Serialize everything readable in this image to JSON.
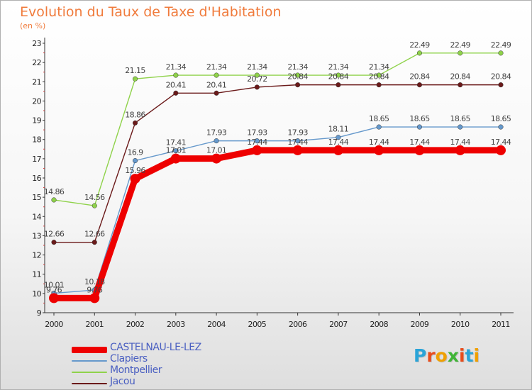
{
  "title": "Evolution du Taux de Taxe d'Habitation",
  "units": "(en %)",
  "logo": {
    "text": "Proxiti",
    "letter_colors": [
      "#2aa4d8",
      "#e84c1c",
      "#f0a000",
      "#3fb436",
      "#e84c1c",
      "#2aa4d8",
      "#f0a000"
    ]
  },
  "chart_data": {
    "type": "line",
    "title": "Evolution du Taux de Taxe d'Habitation",
    "ylabel": "(en %)",
    "xlabel": "",
    "x": [
      "2000",
      "2001",
      "2002",
      "2003",
      "2004",
      "2005",
      "2006",
      "2007",
      "2008",
      "2009",
      "2010",
      "2011"
    ],
    "ylim": [
      9,
      23
    ],
    "yticks": [
      9,
      10,
      11,
      12,
      13,
      14,
      15,
      16,
      17,
      18,
      19,
      20,
      21,
      22,
      23
    ],
    "series": [
      {
        "name": "Montpellier",
        "color": "#8fd24a",
        "values": [
          14.86,
          14.56,
          21.15,
          21.34,
          21.34,
          21.34,
          21.34,
          21.34,
          21.34,
          22.49,
          22.49,
          22.49
        ],
        "labels": [
          "14.86",
          "14.56",
          "21.15",
          "21.34",
          "21.34",
          "21.34",
          "21.34",
          "21.34",
          "21.34",
          "22.49",
          "22.49",
          "22.49"
        ]
      },
      {
        "name": "Jacou",
        "color": "#6b1a1a",
        "values": [
          12.66,
          12.66,
          18.86,
          20.41,
          20.41,
          20.72,
          20.84,
          20.84,
          20.84,
          20.84,
          20.84,
          20.84
        ],
        "labels": [
          "12.66",
          "12.66",
          "18.86",
          "20.41",
          "20.41",
          "20.72",
          "20.84",
          "20.84",
          "20.84",
          "20.84",
          "20.84",
          "20.84"
        ]
      },
      {
        "name": "Clapiers",
        "color": "#6699cc",
        "values": [
          10.01,
          10.18,
          16.9,
          17.41,
          17.93,
          17.93,
          17.93,
          18.11,
          18.65,
          18.65,
          18.65,
          18.65
        ],
        "labels": [
          "10.01",
          "10.18",
          "16.9",
          "17.41",
          "17.93",
          "17.93",
          "17.93",
          "18.11",
          "18.65",
          "18.65",
          "18.65",
          "18.65"
        ]
      },
      {
        "name": "CASTELNAU-LE-LEZ",
        "color": "#ee0000",
        "values": [
          9.76,
          9.76,
          15.96,
          17.01,
          17.01,
          17.44,
          17.44,
          17.44,
          17.44,
          17.44,
          17.44,
          17.44
        ],
        "labels": [
          "9.76",
          "9.76",
          "15.96",
          "17.01",
          "17.01",
          "17.44",
          "17.44",
          "17.44",
          "17.44",
          "17.44",
          "17.44",
          "17.44"
        ]
      }
    ],
    "legend": [
      "CASTELNAU-LE-LEZ",
      "Clapiers",
      "Montpellier",
      "Jacou"
    ],
    "legend_position": "bottom-left",
    "grid": false
  }
}
